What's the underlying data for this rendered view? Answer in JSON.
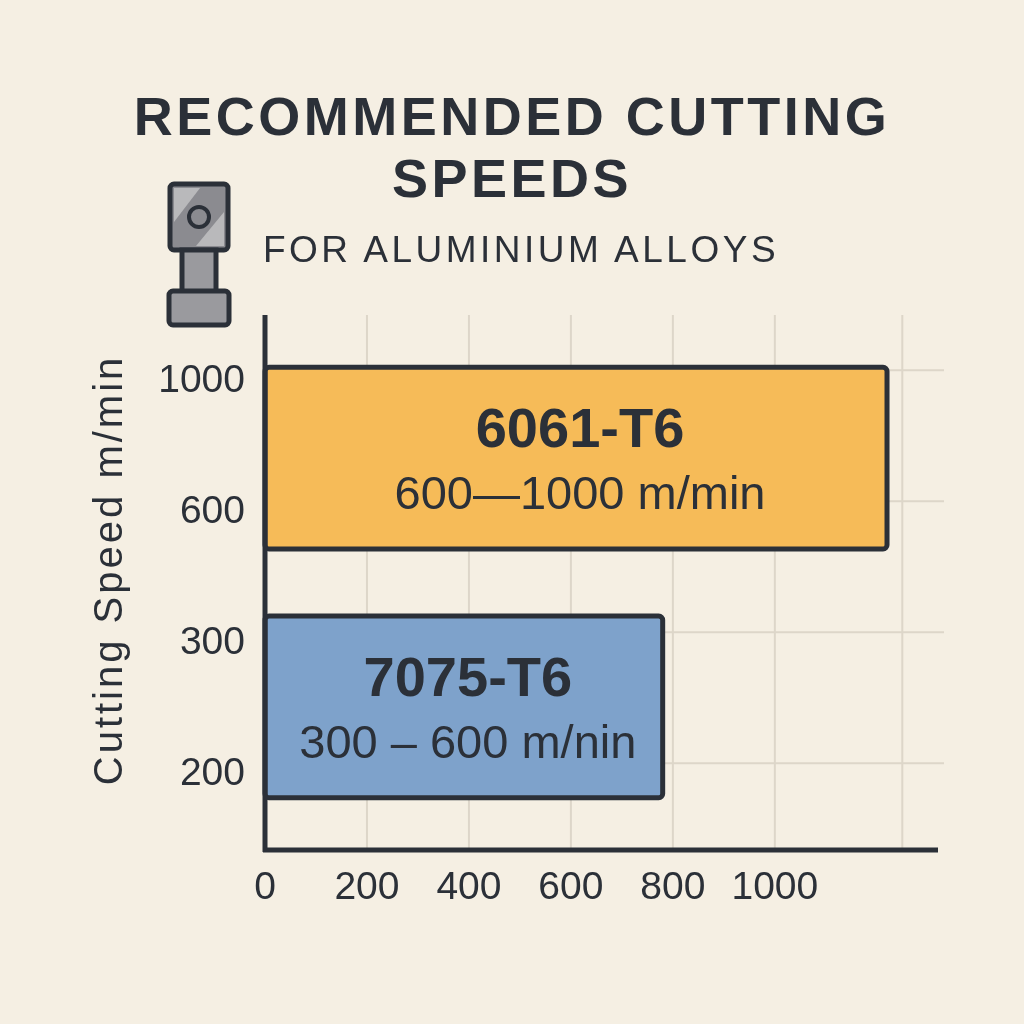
{
  "chart_data": {
    "type": "bar",
    "orientation": "horizontal",
    "title": "RECOMMENDED CUTTING SPEEDS",
    "subtitle": "FOR ALUMINIUM ALLOYS",
    "ylabel": "Cutting Speed m/min",
    "categories": [
      "6061-T6",
      "7075-T6"
    ],
    "values": [
      1220,
      780
    ],
    "colors": [
      "#f6bb58",
      "#7ea2cb"
    ],
    "xlim": [
      0,
      1320
    ],
    "xticks": [
      0,
      200,
      400,
      600,
      800,
      1000,
      {
        "value": 1250,
        "label": null
      }
    ],
    "grid": true,
    "annotations": [
      "600—1000 m/min",
      "300 – 600 m/nin",
      "1000",
      "600",
      "300",
      "200"
    ]
  }
}
